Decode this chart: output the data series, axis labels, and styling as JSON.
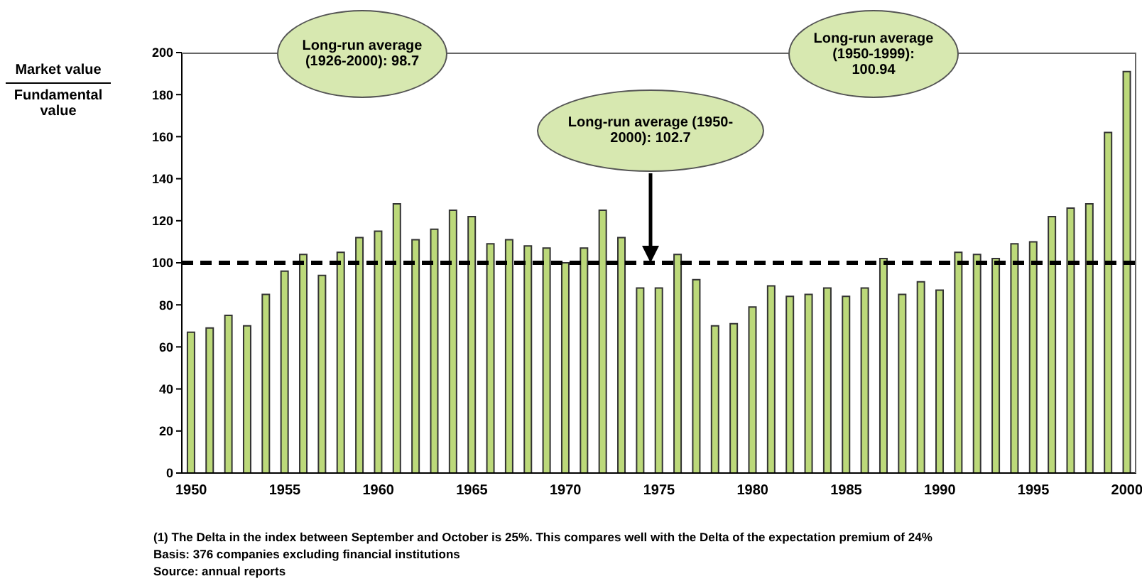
{
  "chart_data": {
    "type": "bar",
    "ylabel": "Market value\nFundamental value",
    "categories": [
      "1950",
      null,
      null,
      null,
      null,
      "1955",
      null,
      null,
      null,
      null,
      "1960",
      null,
      null,
      null,
      null,
      "1965",
      null,
      null,
      null,
      null,
      "1970",
      null,
      null,
      null,
      null,
      "1975",
      null,
      null,
      null,
      null,
      "1980",
      null,
      null,
      null,
      null,
      "1985",
      null,
      null,
      null,
      null,
      "1990",
      null,
      null,
      null,
      null,
      "1995",
      null,
      null,
      null,
      null,
      "2000"
    ],
    "values": [
      67,
      69,
      75,
      70,
      85,
      96,
      104,
      94,
      105,
      112,
      115,
      128,
      111,
      116,
      125,
      122,
      109,
      111,
      108,
      107,
      100,
      107,
      125,
      112,
      88,
      88,
      104,
      92,
      70,
      71,
      79,
      89,
      84,
      85,
      88,
      84,
      88,
      102,
      85,
      91,
      87,
      105,
      104,
      102,
      109,
      110,
      122,
      126,
      128,
      162,
      191
    ],
    "color": "#bcd97a",
    "ylim": [
      0,
      200
    ],
    "yticks": [
      0,
      20,
      40,
      60,
      80,
      100,
      120,
      140,
      160,
      180,
      200
    ],
    "ref_lines": [
      {
        "axis": "y",
        "value": 100,
        "color": "#000000",
        "line_style": "dashed"
      }
    ],
    "annotations": [
      "Long-run average (1926-2000): 98.7",
      "Long-run average (1950-2000): 102.7",
      "Long-run average (1950-1999): 100.94",
      "(1)  The Delta in the index between September and October is 25%. This compares well with the Delta of the expectation premium of 24%",
      "Basis: 376 companies excluding financial institutions",
      "Source: annual reports"
    ]
  }
}
